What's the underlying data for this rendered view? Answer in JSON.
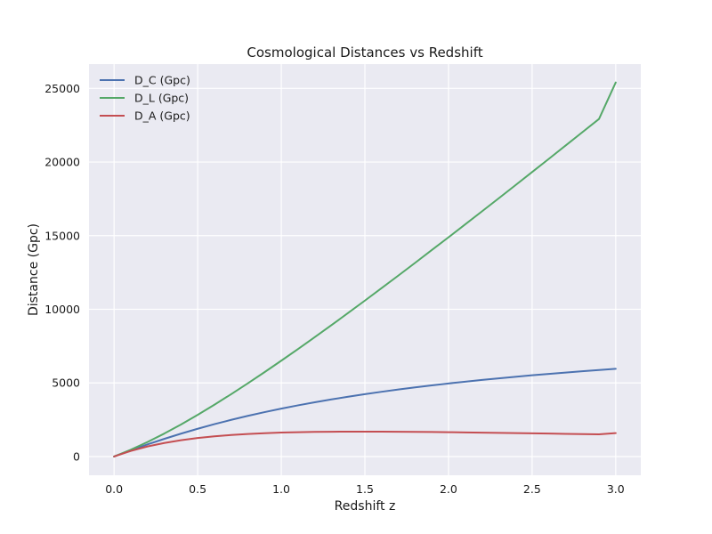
{
  "chart_data": {
    "type": "line",
    "title": "Cosmological Distances vs Redshift",
    "xlabel": "Redshift z",
    "ylabel": "Distance (Gpc)",
    "xlim": [
      -0.15,
      3.15
    ],
    "ylim": [
      -1270,
      26650
    ],
    "xticks": [
      0.0,
      0.5,
      1.0,
      1.5,
      2.0,
      2.5,
      3.0
    ],
    "xtick_labels": [
      "0.0",
      "0.5",
      "1.0",
      "1.5",
      "2.0",
      "2.5",
      "3.0"
    ],
    "yticks": [
      0,
      5000,
      10000,
      15000,
      20000,
      25000
    ],
    "ytick_labels": [
      "0",
      "5000",
      "10000",
      "15000",
      "20000",
      "25000"
    ],
    "grid": true,
    "legend_position": "top-left",
    "x": [
      0.0,
      0.1,
      0.2,
      0.3,
      0.4,
      0.5,
      0.6,
      0.7,
      0.8,
      0.9,
      1.0,
      1.1,
      1.2,
      1.3,
      1.4,
      1.5,
      1.6,
      1.7,
      1.8,
      1.9,
      2.0,
      2.1,
      2.2,
      2.3,
      2.4,
      2.5,
      2.6,
      2.7,
      2.8,
      2.9,
      3.0
    ],
    "series": [
      {
        "name": "D_C (Gpc)",
        "color": "#4c72b0",
        "values": [
          0,
          422,
          824,
          1200,
          1555,
          1888,
          2200,
          2491,
          2763,
          3017,
          3255,
          3477,
          3685,
          3880,
          4063,
          4236,
          4399,
          4552,
          4697,
          4834,
          4963,
          5086,
          5203,
          5313,
          5419,
          5519,
          5615,
          5706,
          5793,
          5877,
          5957
        ]
      },
      {
        "name": "D_L (Gpc)",
        "color": "#55a868",
        "values": [
          0,
          464,
          989,
          1560,
          2177,
          2832,
          3520,
          4235,
          4973,
          5732,
          6510,
          7302,
          8106,
          8924,
          9752,
          10590,
          11437,
          12290,
          13152,
          14021,
          14889,
          15766,
          16647,
          17533,
          18425,
          19318,
          20215,
          21116,
          22020,
          22923,
          25400
        ]
      },
      {
        "name": "D_A (Gpc)",
        "color": "#c44e52",
        "values": [
          0,
          384,
          687,
          923,
          1111,
          1259,
          1375,
          1465,
          1535,
          1588,
          1628,
          1656,
          1675,
          1687,
          1693,
          1694,
          1692,
          1686,
          1678,
          1667,
          1654,
          1641,
          1626,
          1610,
          1594,
          1577,
          1560,
          1543,
          1525,
          1508,
          1590
        ]
      }
    ]
  }
}
